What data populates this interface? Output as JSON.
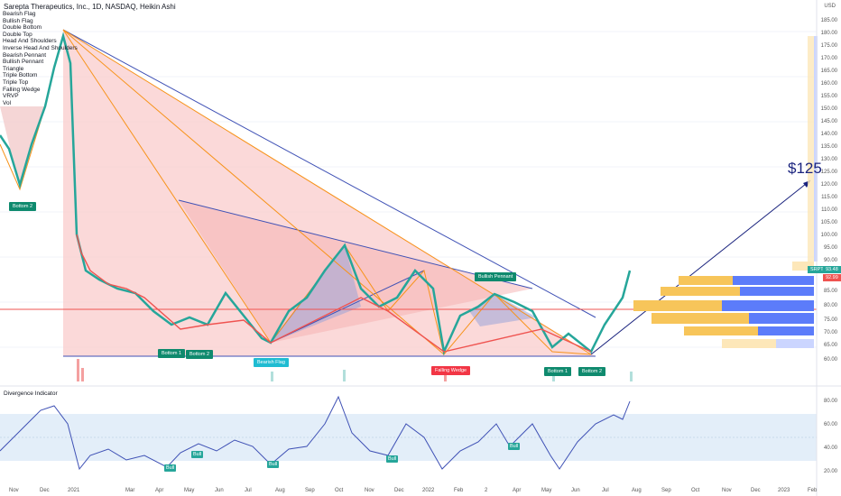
{
  "title": "Sarepta Therapeutics, Inc., 1D, NASDAQ, Heikin Ashi",
  "currency": "USD",
  "patterns": [
    "Bearish Flag",
    "Bullish Flag",
    "Double Bottom",
    "Double Top",
    "Head And Shoulders",
    "Inverse Head And Shoulders",
    "Bearish Pennant",
    "Bullish Pennant",
    "Triangle",
    "Triple Bottom",
    "Triple Top",
    "Falling Wedge",
    "VRVP",
    "Vol"
  ],
  "labels": {
    "bottom2_left": "Bottom 2",
    "bottom1_a": "Bottom 1",
    "bottom2_a": "Bottom 2",
    "bearish_flag": "Bearish Flag",
    "bullish_pennant": "Bullish Pennant",
    "falling_wedge": "Falling Wedge",
    "bottom1_b": "Bottom 1",
    "bottom2_b": "Bottom 2"
  },
  "target_label": "$125",
  "symbol_tag": "SRPT",
  "price_tag_1": "93.48",
  "price_tag_2": "92.99",
  "indicator": {
    "title": "Divergence Indicator",
    "bull": "Bull",
    "y_labels": [
      "80.00",
      "60.00",
      "40.00",
      "20.00"
    ]
  },
  "y_axis": [
    "185.00",
    "180.00",
    "175.00",
    "170.00",
    "165.00",
    "160.00",
    "155.00",
    "150.00",
    "145.00",
    "140.00",
    "135.00",
    "130.00",
    "125.00",
    "120.00",
    "115.00",
    "110.00",
    "105.00",
    "100.00",
    "95.00",
    "90.00",
    "85.00",
    "80.00",
    "75.00",
    "70.00",
    "65.00",
    "60.00"
  ],
  "x_axis": [
    "Nov",
    "Dec",
    "2021",
    "Mar",
    "Apr",
    "May",
    "Jun",
    "Jul",
    "Aug",
    "Sep",
    "Oct",
    "Nov",
    "Dec",
    "2022",
    "Feb",
    "2",
    "Apr",
    "May",
    "Jun",
    "Jul",
    "Aug",
    "Sep",
    "Oct",
    "Nov",
    "Dec",
    "2023",
    "Feb"
  ],
  "colors": {
    "up": "#26a69a",
    "down": "#ef5350",
    "line_blue": "#3f51b5",
    "orange": "#f7931a",
    "fill_red": "#f8c8c8",
    "fill_blue": "#9aa4d8"
  }
}
